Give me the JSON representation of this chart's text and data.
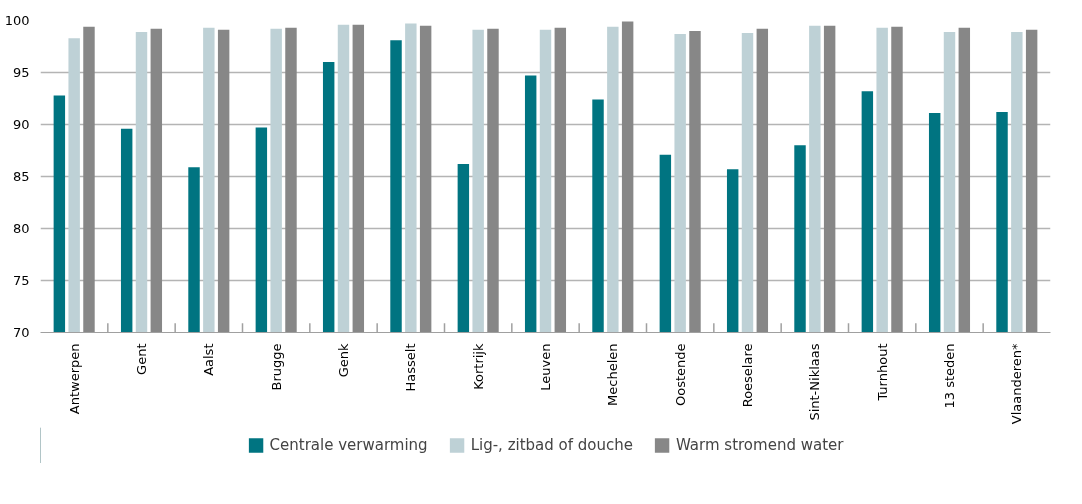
{
  "chart_data": {
    "type": "bar",
    "categories": [
      "Antwerpen",
      "Gent",
      "Aalst",
      "Brugge",
      "Genk",
      "Hasselt",
      "Kortrijk",
      "Leuven",
      "Mechelen",
      "Oostende",
      "Roeselare",
      "Sint-Niklaas",
      "Turnhout",
      "13 steden",
      "Vlaanderen*"
    ],
    "series": [
      {
        "name": "Centrale verwarming",
        "color": "#007481",
        "values": [
          92.8,
          89.6,
          85.9,
          89.7,
          96.0,
          98.1,
          86.2,
          94.7,
          92.4,
          87.1,
          85.7,
          88.0,
          93.2,
          91.1,
          91.2
        ]
      },
      {
        "name": "Lig-, zitbad of douche",
        "color": "#bed1d6",
        "values": [
          98.3,
          98.9,
          99.3,
          99.2,
          99.6,
          99.7,
          99.1,
          99.1,
          99.4,
          98.7,
          98.8,
          99.5,
          99.3,
          98.9,
          98.9
        ]
      },
      {
        "name": "Warm stromend water",
        "color": "#878787",
        "values": [
          99.4,
          99.2,
          99.1,
          99.3,
          99.6,
          99.5,
          99.2,
          99.3,
          99.9,
          99.0,
          99.2,
          99.5,
          99.4,
          99.3,
          99.1
        ]
      }
    ],
    "ylim": [
      70,
      100
    ],
    "yticks": [
      70,
      75,
      80,
      85,
      90,
      95,
      100
    ],
    "grid": "y",
    "legend": "bottom"
  }
}
